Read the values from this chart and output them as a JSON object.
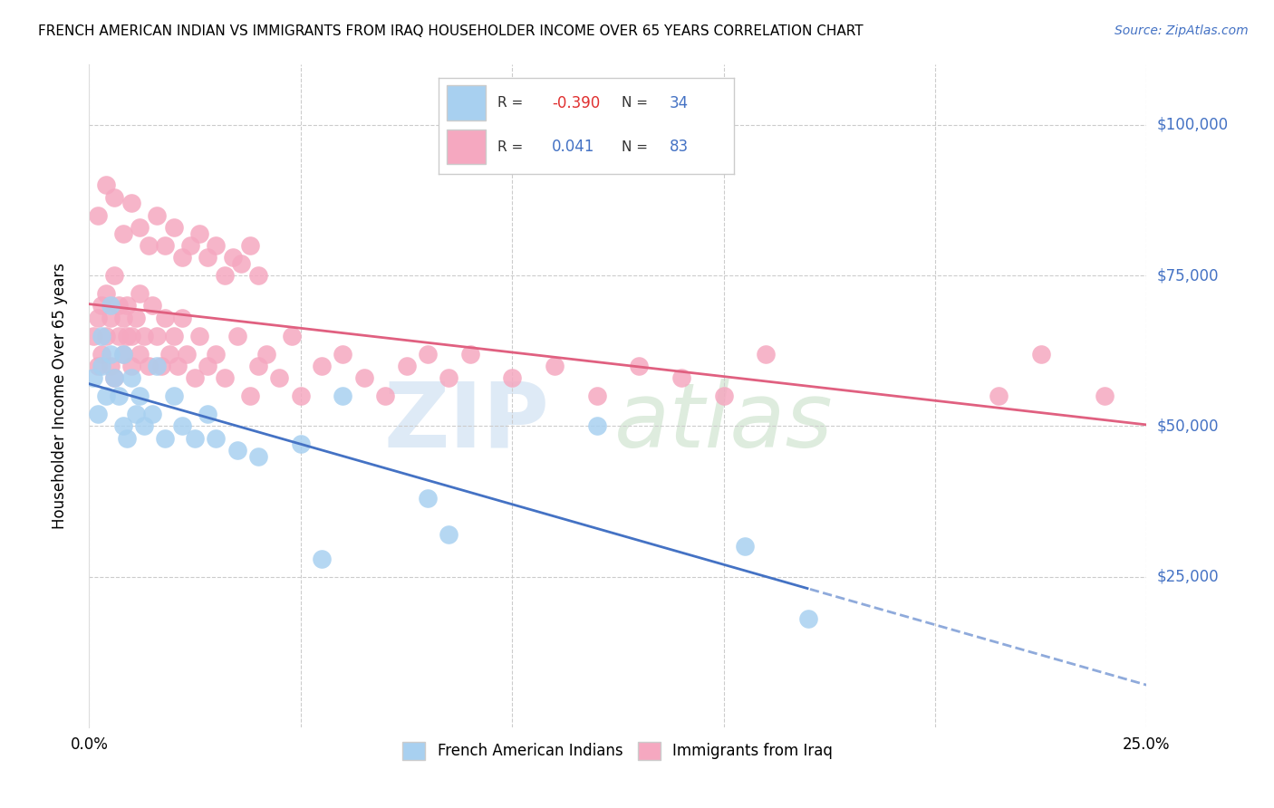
{
  "title": "FRENCH AMERICAN INDIAN VS IMMIGRANTS FROM IRAQ HOUSEHOLDER INCOME OVER 65 YEARS CORRELATION CHART",
  "source": "Source: ZipAtlas.com",
  "ylabel": "Householder Income Over 65 years",
  "ytick_labels": [
    "$25,000",
    "$50,000",
    "$75,000",
    "$100,000"
  ],
  "ytick_values": [
    25000,
    50000,
    75000,
    100000
  ],
  "ylim": [
    0,
    110000
  ],
  "xlim": [
    0.0,
    0.25
  ],
  "color_blue": "#a8d0f0",
  "color_pink": "#f5a8c0",
  "line_blue": "#4472c4",
  "line_pink": "#e06080",
  "watermark_zip": "ZIP",
  "watermark_atlas": "atlas",
  "legend_r1": "-0.390",
  "legend_n1": "34",
  "legend_r2": "0.041",
  "legend_n2": "83",
  "blue_x": [
    0.001,
    0.002,
    0.003,
    0.003,
    0.004,
    0.005,
    0.005,
    0.006,
    0.007,
    0.008,
    0.008,
    0.009,
    0.01,
    0.011,
    0.012,
    0.013,
    0.015,
    0.016,
    0.018,
    0.02,
    0.022,
    0.025,
    0.028,
    0.03,
    0.035,
    0.04,
    0.05,
    0.055,
    0.06,
    0.08,
    0.085,
    0.12,
    0.155,
    0.17
  ],
  "blue_y": [
    58000,
    52000,
    65000,
    60000,
    55000,
    70000,
    62000,
    58000,
    55000,
    50000,
    62000,
    48000,
    58000,
    52000,
    55000,
    50000,
    52000,
    60000,
    48000,
    55000,
    50000,
    48000,
    52000,
    48000,
    46000,
    45000,
    47000,
    28000,
    55000,
    38000,
    32000,
    50000,
    30000,
    18000
  ],
  "pink_x": [
    0.001,
    0.002,
    0.002,
    0.003,
    0.003,
    0.004,
    0.004,
    0.005,
    0.005,
    0.006,
    0.006,
    0.007,
    0.007,
    0.008,
    0.008,
    0.009,
    0.009,
    0.01,
    0.01,
    0.011,
    0.012,
    0.012,
    0.013,
    0.014,
    0.015,
    0.016,
    0.017,
    0.018,
    0.019,
    0.02,
    0.021,
    0.022,
    0.023,
    0.025,
    0.026,
    0.028,
    0.03,
    0.032,
    0.035,
    0.038,
    0.04,
    0.042,
    0.045,
    0.048,
    0.05,
    0.055,
    0.06,
    0.065,
    0.07,
    0.075,
    0.08,
    0.085,
    0.09,
    0.1,
    0.11,
    0.12,
    0.13,
    0.14,
    0.15,
    0.16,
    0.002,
    0.004,
    0.006,
    0.008,
    0.01,
    0.012,
    0.014,
    0.016,
    0.018,
    0.02,
    0.022,
    0.024,
    0.026,
    0.028,
    0.03,
    0.032,
    0.034,
    0.036,
    0.038,
    0.04,
    0.215,
    0.225,
    0.24
  ],
  "pink_y": [
    65000,
    60000,
    68000,
    62000,
    70000,
    65000,
    72000,
    60000,
    68000,
    58000,
    75000,
    65000,
    70000,
    68000,
    62000,
    65000,
    70000,
    60000,
    65000,
    68000,
    62000,
    72000,
    65000,
    60000,
    70000,
    65000,
    60000,
    68000,
    62000,
    65000,
    60000,
    68000,
    62000,
    58000,
    65000,
    60000,
    62000,
    58000,
    65000,
    55000,
    60000,
    62000,
    58000,
    65000,
    55000,
    60000,
    62000,
    58000,
    55000,
    60000,
    62000,
    58000,
    62000,
    58000,
    60000,
    55000,
    60000,
    58000,
    55000,
    62000,
    85000,
    90000,
    88000,
    82000,
    87000,
    83000,
    80000,
    85000,
    80000,
    83000,
    78000,
    80000,
    82000,
    78000,
    80000,
    75000,
    78000,
    77000,
    80000,
    75000,
    55000,
    62000,
    55000
  ]
}
